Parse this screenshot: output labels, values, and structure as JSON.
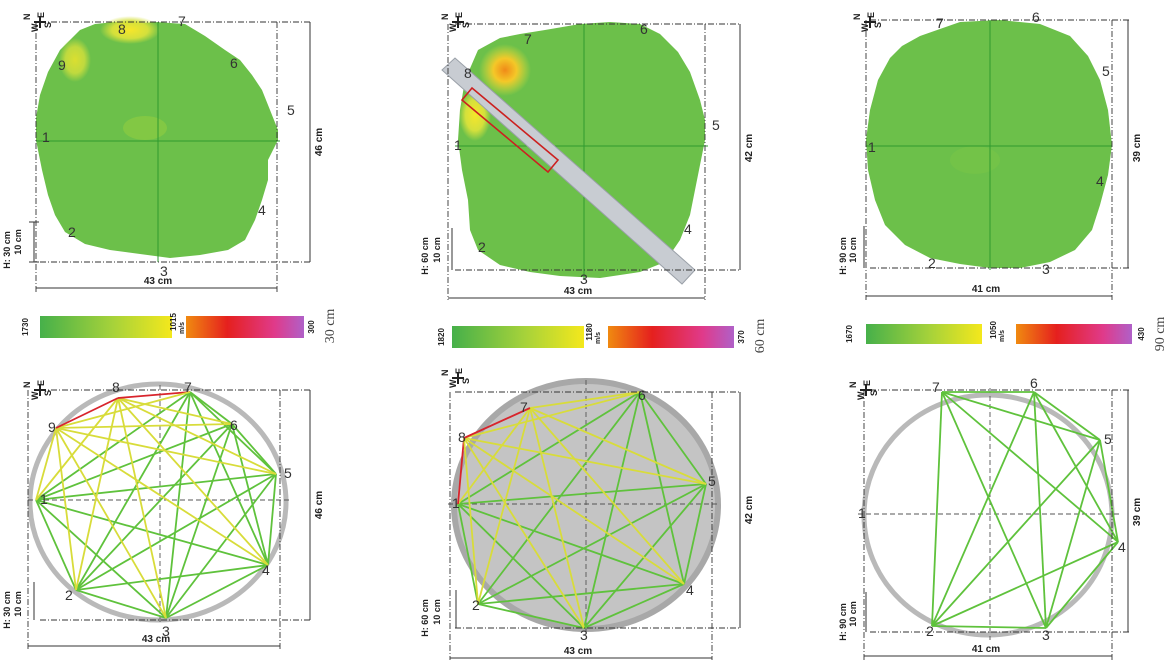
{
  "panels": [
    {
      "height_label": "H: 30 cm",
      "scale_label": "10 cm",
      "width_label": "43 cm",
      "depth_label": "46 cm",
      "sensor_count": 9,
      "scale_max": "1730",
      "scale_mid": "1015",
      "scale_min": "300",
      "speed_unit": "m/s",
      "section_label": "30 cm",
      "has_sample_tube": false
    },
    {
      "height_label": "H: 60 cm",
      "scale_label": "10 cm",
      "width_label": "43 cm",
      "depth_label": "42 cm",
      "sensor_count": 8,
      "scale_max": "1820",
      "scale_mid": "1180",
      "scale_min": "370",
      "speed_unit": "m/s",
      "section_label": "60 cm",
      "has_sample_tube": true
    },
    {
      "height_label": "H: 90 cm",
      "scale_label": "10 cm",
      "width_label": "41 cm",
      "depth_label": "39 cm",
      "sensor_count": 7,
      "scale_max": "1670",
      "scale_mid": "1050",
      "scale_min": "430",
      "speed_unit": "m/s",
      "section_label": "90 cm",
      "has_sample_tube": false
    }
  ],
  "compass": {
    "north": "N",
    "south": "S",
    "east": "E",
    "west": "W"
  },
  "colors": {
    "tomogram_green": "#6cc04a",
    "warm_yellow": "#e4e43a",
    "warm_orange": "#f3a020",
    "path_green": "#5fc23c",
    "path_yellow": "#d8dc3a",
    "path_red": "#d8242c",
    "ring_gray": "#b9b9b9"
  }
}
